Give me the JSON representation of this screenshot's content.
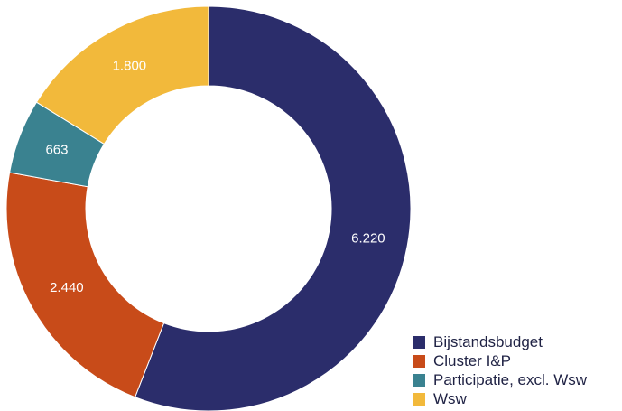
{
  "chart_data": {
    "type": "pie",
    "variant": "donut",
    "title": "",
    "categories": [
      "Bijstandsbudget",
      "Cluster I&P",
      "Participatie, excl. Wsw",
      "Wsw"
    ],
    "values": [
      6220,
      2440,
      663,
      1800
    ],
    "value_labels": [
      "6.220",
      "2.440",
      "663",
      "1.800"
    ],
    "colors": [
      "#2b2d6b",
      "#c84b19",
      "#3a8290",
      "#f2b93b"
    ],
    "start_angle": "12 o'clock",
    "direction": "clockwise",
    "legend": {
      "placement": "bottom-right",
      "items": [
        "Bijstandsbudget",
        "Cluster I&P",
        "Participatie, excl. Wsw",
        "Wsw"
      ]
    }
  }
}
